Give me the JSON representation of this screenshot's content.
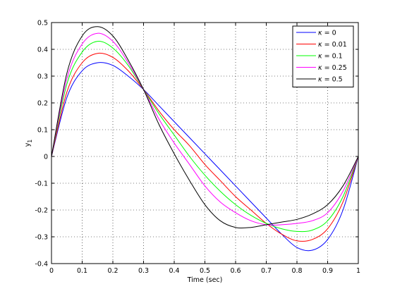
{
  "chart_data": {
    "type": "line",
    "title": "",
    "xlabel": "Time (sec)",
    "ylabel": "y",
    "ylabel_sub": "1",
    "xlim": [
      0,
      1
    ],
    "ylim": [
      -0.4,
      0.5
    ],
    "xticks": [
      "0",
      "0.1",
      "0.2",
      "0.3",
      "0.4",
      "0.5",
      "0.6",
      "0.7",
      "0.8",
      "0.9",
      "1"
    ],
    "yticks": [
      "-0.4",
      "-0.3",
      "-0.2",
      "-0.1",
      "0",
      "0.1",
      "0.2",
      "0.3",
      "0.4",
      "0.5"
    ],
    "grid": true,
    "legend_position": "top-right",
    "legend_symbol": "κ",
    "x": [
      0,
      0.05,
      0.1,
      0.15,
      0.2,
      0.25,
      0.3,
      0.35,
      0.4,
      0.45,
      0.5,
      0.55,
      0.6,
      0.65,
      0.7,
      0.75,
      0.8,
      0.85,
      0.9,
      0.95,
      1.0
    ],
    "series": [
      {
        "name": "= 0",
        "color": "#0000ff",
        "values": [
          0,
          0.22,
          0.32,
          0.35,
          0.34,
          0.3,
          0.25,
          0.19,
          0.13,
          0.07,
          0.01,
          -0.05,
          -0.11,
          -0.17,
          -0.23,
          -0.29,
          -0.34,
          -0.35,
          -0.31,
          -0.2,
          0
        ]
      },
      {
        "name": "= 0.01",
        "color": "#ff0000",
        "values": [
          0,
          0.24,
          0.35,
          0.385,
          0.37,
          0.32,
          0.25,
          0.17,
          0.1,
          0.04,
          -0.03,
          -0.09,
          -0.15,
          -0.2,
          -0.25,
          -0.29,
          -0.315,
          -0.31,
          -0.27,
          -0.17,
          0
        ]
      },
      {
        "name": "= 0.1",
        "color": "#00ff00",
        "values": [
          0,
          0.27,
          0.39,
          0.43,
          0.405,
          0.34,
          0.25,
          0.16,
          0.08,
          0.0,
          -0.07,
          -0.13,
          -0.18,
          -0.22,
          -0.25,
          -0.27,
          -0.28,
          -0.275,
          -0.24,
          -0.15,
          0
        ]
      },
      {
        "name": "= 0.25",
        "color": "#ff00ff",
        "values": [
          0,
          0.29,
          0.42,
          0.46,
          0.43,
          0.35,
          0.25,
          0.14,
          0.05,
          -0.03,
          -0.11,
          -0.17,
          -0.21,
          -0.24,
          -0.255,
          -0.255,
          -0.25,
          -0.24,
          -0.21,
          -0.13,
          0
        ]
      },
      {
        "name": "= 0.5",
        "color": "#000000",
        "values": [
          0,
          0.31,
          0.45,
          0.485,
          0.45,
          0.36,
          0.25,
          0.12,
          0.01,
          -0.09,
          -0.18,
          -0.24,
          -0.265,
          -0.265,
          -0.255,
          -0.245,
          -0.235,
          -0.215,
          -0.18,
          -0.11,
          0
        ]
      }
    ]
  }
}
